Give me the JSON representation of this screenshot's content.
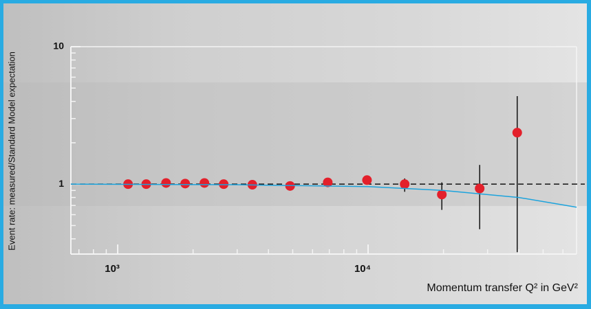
{
  "chart_data": {
    "type": "scatter",
    "x_label": "Momentum transfer Q² in GeV²",
    "y_label": "Event rate: measured/Standard Model expectation",
    "log_x": true,
    "log_y": true,
    "xlim": [
      650,
      68000
    ],
    "ylim": [
      0.31,
      10
    ],
    "xticks": [
      {
        "value": 1000,
        "label": "10³"
      },
      {
        "value": 10000,
        "label": "10⁴"
      }
    ],
    "xminorticks": [
      700,
      800,
      900,
      2000,
      3000,
      4000,
      5000,
      6000,
      7000,
      8000,
      9000,
      20000,
      30000,
      40000,
      50000,
      60000
    ],
    "yticks": [
      1,
      10
    ],
    "yminorticks": [
      0.4,
      0.5,
      0.6,
      0.7,
      0.8,
      0.9,
      2,
      3,
      4,
      5,
      6,
      7,
      8,
      9
    ],
    "reference_line": 1,
    "series": [
      {
        "type": "scatter",
        "color": "#e3202b",
        "x": [
          1100,
          1300,
          1560,
          1860,
          2220,
          2650,
          3450,
          4880,
          6900,
          9900,
          14000,
          19700,
          27900,
          39400
        ],
        "values": [
          1.0,
          1.0,
          1.02,
          1.01,
          1.02,
          1.0,
          0.99,
          0.97,
          1.03,
          1.07,
          1.0,
          0.84,
          0.93,
          2.37
        ],
        "ylow": [
          null,
          null,
          null,
          null,
          null,
          null,
          null,
          null,
          null,
          null,
          0.88,
          0.65,
          0.47,
          0.32
        ],
        "yhigh": [
          null,
          null,
          null,
          null,
          null,
          null,
          null,
          null,
          null,
          null,
          1.1,
          1.03,
          1.38,
          4.37
        ]
      },
      {
        "type": "line",
        "color": "#1ba3dd",
        "x": [
          650,
          3000,
          10000,
          20000,
          40000,
          68000
        ],
        "values": [
          1.0,
          0.99,
          0.96,
          0.9,
          0.8,
          0.68
        ]
      }
    ]
  }
}
